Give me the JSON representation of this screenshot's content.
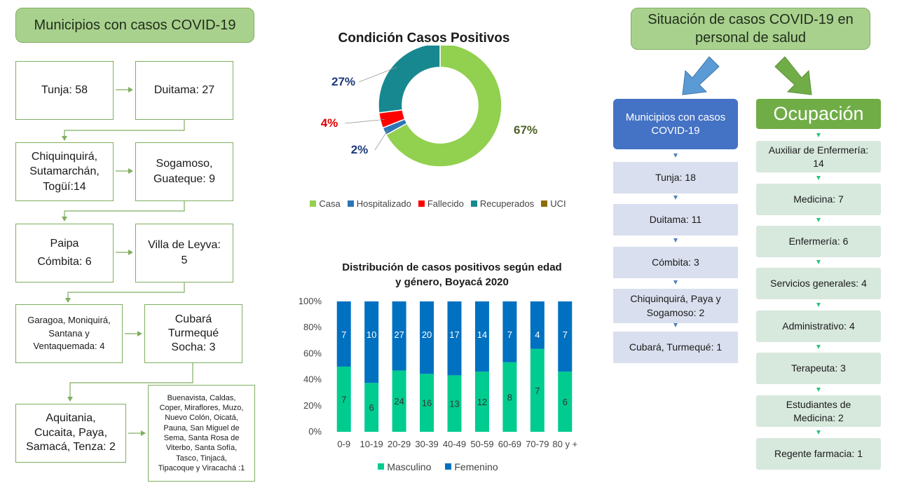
{
  "left": {
    "title": "Municipios con casos COVID-19",
    "boxes": [
      "Tunja: 58",
      "Duitama: 27",
      "Chiquinquirá,\nSutamarchán,\nTogüí:14",
      "Sogamoso,\nGuateque: 9",
      "Paipa\nCómbita: 6",
      "Villa de Leyva:\n5",
      "Garagoa, Moniquirá,\nSantana y\nVentaquemada: 4",
      "Cubará\nTurmequé\nSocha: 3",
      "Aquitania,\nCucaita, Paya,\nSamacá, Tenza: 2",
      "Buenavista, Caldas,\nCoper, Miraflores, Muzo,\nNuevo Colón, Oicatá,\nPauna, San Miguel de\nSema, Santa Rosa de\nViterbo, Santa Sofía,\nTasco, Tinjacá,\nTipacoque y Viracachá :1"
    ]
  },
  "donut": {
    "title": "Condición Casos Positivos",
    "labels": [
      "67%",
      "2%",
      "4%",
      "27%"
    ],
    "legend": [
      "Casa",
      "Hospitalizado",
      "Fallecido",
      "Recuperados",
      "UCI"
    ]
  },
  "bar": {
    "title_line1": "Distribución de casos positivos según edad",
    "title_line2": "y género, Boyacá 2020",
    "legend": [
      "Masculino",
      "Femenino"
    ]
  },
  "right": {
    "title": "Situación de casos COVID-19 en personal de salud",
    "municipios": {
      "head": "Municipios con casos COVID-19",
      "items": [
        "Tunja: 18",
        "Duitama: 11",
        "Cómbita: 3",
        "Chiquinquirá, Paya y Sogamoso: 2",
        "Cubará, Turmequé: 1"
      ]
    },
    "ocupacion": {
      "head": "Ocupación",
      "items": [
        "Auxiliar de Enfermería:\n14",
        "Medicina: 7",
        "Enfermería: 6",
        "Servicios generales: 4",
        "Administrativo:  4",
        "Terapeuta: 3",
        "Estudiantes de\nMedicina: 2",
        "Regente farmacia: 1"
      ]
    }
  },
  "colors": {
    "casa": "#92d050",
    "hospitalizado": "#2e75b6",
    "fallecido": "#ff0000",
    "recuperados": "#17888f",
    "uci": "#8f6b00",
    "masculino": "#00cc8f",
    "femenino": "#0070c0"
  },
  "chart_data": [
    {
      "type": "pie",
      "title": "Condición Casos Positivos",
      "categories": [
        "Casa",
        "Hospitalizado",
        "Fallecido",
        "Recuperados",
        "UCI"
      ],
      "values": [
        67,
        2,
        4,
        27,
        0
      ],
      "unit": "%",
      "legend_position": "bottom"
    },
    {
      "type": "bar",
      "stacked": "percent",
      "title": "Distribución de casos positivos según edad y género, Boyacá 2020",
      "categories": [
        "0-9",
        "10-19",
        "20-29",
        "30-39",
        "40-49",
        "50-59",
        "60-69",
        "70-79",
        "80 y +"
      ],
      "series": [
        {
          "name": "Masculino",
          "values": [
            7,
            6,
            24,
            16,
            13,
            12,
            8,
            7,
            6
          ]
        },
        {
          "name": "Femenino",
          "values": [
            7,
            10,
            27,
            20,
            17,
            14,
            7,
            4,
            7
          ]
        }
      ],
      "yticks": [
        "0%",
        "20%",
        "40%",
        "60%",
        "80%",
        "100%"
      ],
      "ylim": [
        0,
        100
      ],
      "legend_position": "bottom"
    }
  ]
}
